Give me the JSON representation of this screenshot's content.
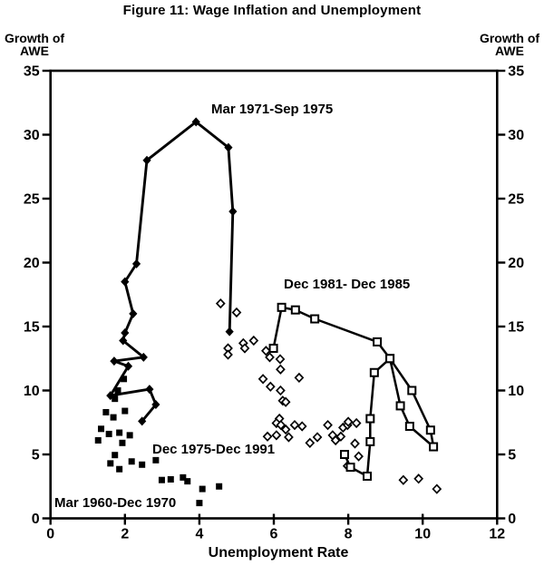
{
  "title": "Figure 11: Wage Inflation and Unemployment",
  "axes": {
    "y_left_label": "Growth of\nAWE",
    "y_right_label": "Growth of\nAWE",
    "x_label": "Unemployment Rate"
  },
  "colors": {
    "ink": "#000000",
    "background": "#ffffff"
  },
  "chart_data": {
    "type": "scatter",
    "title": "Figure 11: Wage Inflation and Unemployment",
    "xlabel": "Unemployment Rate",
    "ylabel": "Growth of AWE",
    "xlim": [
      0,
      12
    ],
    "ylim": [
      0,
      35
    ],
    "x_ticks": [
      0,
      2,
      4,
      6,
      8,
      10,
      12
    ],
    "y_ticks": [
      0,
      5,
      10,
      15,
      20,
      25,
      30,
      35
    ],
    "grid": false,
    "legend_position": "inline-annotations",
    "series": [
      {
        "name": "Mar 1960-Dec 1970",
        "marker": "filled-square",
        "connected": false,
        "points": [
          [
            1.97,
            10.9
          ],
          [
            1.81,
            10.0
          ],
          [
            1.73,
            9.35
          ],
          [
            2.0,
            8.4
          ],
          [
            1.49,
            8.3
          ],
          [
            1.69,
            7.9
          ],
          [
            1.36,
            7.0
          ],
          [
            1.85,
            6.7
          ],
          [
            1.57,
            6.6
          ],
          [
            2.13,
            6.5
          ],
          [
            1.28,
            6.1
          ],
          [
            1.93,
            5.9
          ],
          [
            1.73,
            4.95
          ],
          [
            2.83,
            4.55
          ],
          [
            2.46,
            4.2
          ],
          [
            2.18,
            4.45
          ],
          [
            1.61,
            4.3
          ],
          [
            1.85,
            3.85
          ],
          [
            2.99,
            3.0
          ],
          [
            3.23,
            3.05
          ],
          [
            3.56,
            3.2
          ],
          [
            3.68,
            2.9
          ],
          [
            4.08,
            2.3
          ],
          [
            4.53,
            2.5
          ],
          [
            4.0,
            1.2
          ]
        ]
      },
      {
        "name": "Mar 1971-Sep 1975",
        "marker": "filled-diamond",
        "connected": true,
        "points": [
          [
            2.46,
            7.6
          ],
          [
            2.83,
            8.9
          ],
          [
            2.66,
            10.1
          ],
          [
            1.61,
            9.6
          ],
          [
            2.09,
            11.9
          ],
          [
            1.71,
            12.3
          ],
          [
            2.5,
            12.6
          ],
          [
            1.95,
            13.9
          ],
          [
            2.0,
            14.5
          ],
          [
            2.22,
            16.0
          ],
          [
            2.0,
            18.5
          ],
          [
            2.31,
            19.9
          ],
          [
            2.59,
            28.0
          ],
          [
            3.91,
            31.0
          ],
          [
            4.78,
            29.0
          ],
          [
            4.9,
            24.0
          ],
          [
            4.81,
            14.6
          ]
        ]
      },
      {
        "name": "Dec 1975-Dec 1991",
        "marker": "open-diamond",
        "connected": false,
        "points": [
          [
            4.57,
            16.8
          ],
          [
            5.0,
            16.1
          ],
          [
            5.46,
            13.9
          ],
          [
            5.18,
            13.7
          ],
          [
            4.77,
            13.3
          ],
          [
            5.22,
            13.3
          ],
          [
            4.77,
            12.8
          ],
          [
            5.79,
            13.1
          ],
          [
            5.89,
            12.6
          ],
          [
            6.17,
            12.45
          ],
          [
            6.18,
            11.65
          ],
          [
            6.68,
            11.0
          ],
          [
            5.71,
            10.9
          ],
          [
            5.91,
            10.3
          ],
          [
            6.18,
            10.0
          ],
          [
            6.24,
            9.2
          ],
          [
            6.32,
            9.1
          ],
          [
            6.15,
            7.8
          ],
          [
            6.07,
            7.45
          ],
          [
            6.19,
            7.3
          ],
          [
            6.56,
            7.3
          ],
          [
            6.76,
            7.2
          ],
          [
            6.32,
            6.95
          ],
          [
            6.07,
            6.5
          ],
          [
            5.83,
            6.4
          ],
          [
            6.4,
            6.35
          ],
          [
            6.97,
            5.9
          ],
          [
            7.17,
            6.35
          ],
          [
            7.45,
            7.3
          ],
          [
            7.86,
            7.1
          ],
          [
            7.98,
            7.3
          ],
          [
            8.0,
            7.55
          ],
          [
            8.22,
            7.45
          ],
          [
            7.58,
            6.5
          ],
          [
            7.8,
            6.4
          ],
          [
            7.66,
            6.1
          ],
          [
            8.18,
            5.85
          ],
          [
            8.28,
            4.85
          ],
          [
            7.98,
            4.1
          ],
          [
            9.48,
            3.0
          ],
          [
            9.89,
            3.1
          ],
          [
            10.38,
            2.3
          ]
        ]
      },
      {
        "name": "Dec 1981- Dec 1985",
        "marker": "open-square",
        "connected": true,
        "points": [
          [
            5.99,
            13.3
          ],
          [
            6.21,
            16.5
          ],
          [
            6.58,
            16.3
          ],
          [
            7.1,
            15.6
          ],
          [
            8.78,
            13.8
          ],
          [
            9.12,
            12.5
          ],
          [
            9.71,
            10.0
          ],
          [
            10.21,
            6.9
          ],
          [
            10.29,
            5.6
          ],
          [
            9.65,
            7.2
          ],
          [
            9.4,
            8.8
          ],
          [
            9.12,
            12.5
          ],
          [
            8.7,
            11.4
          ],
          [
            8.59,
            7.8
          ],
          [
            8.59,
            6.0
          ],
          [
            8.51,
            3.3
          ],
          [
            8.06,
            4.0
          ],
          [
            7.9,
            5.0
          ]
        ]
      }
    ]
  }
}
